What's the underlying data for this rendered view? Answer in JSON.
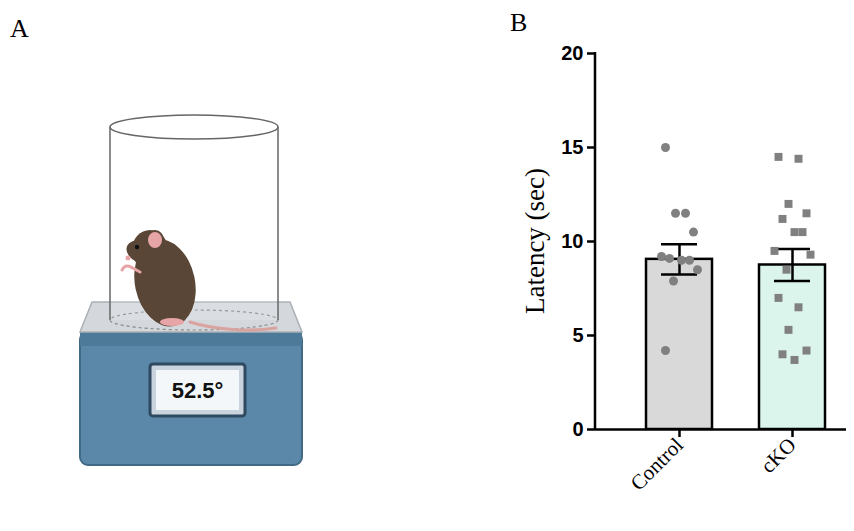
{
  "panel_a": {
    "letter": "A",
    "display": "52.5°"
  },
  "chart_data": {
    "letter": "B",
    "type": "bar",
    "y_label": "Latency (sec)",
    "categories": [
      "Control",
      "cKO"
    ],
    "values": [
      9.05,
      8.75
    ],
    "errors": [
      0.8,
      0.85
    ],
    "colors": [
      "#d9d9d9",
      "#dcf5ec"
    ],
    "points": [
      {
        "marker": "circle",
        "color": "#808080",
        "values": [
          15.0,
          11.5,
          11.5,
          10.5,
          9.1,
          9.0,
          9.0,
          9.2,
          8.5,
          7.9,
          4.2
        ]
      },
      {
        "marker": "square",
        "color": "#808080",
        "values": [
          14.5,
          14.4,
          12.0,
          11.5,
          11.2,
          10.5,
          10.5,
          9.5,
          9.3,
          8.5,
          7.0,
          6.5,
          5.3,
          4.2,
          4.0,
          3.7
        ]
      }
    ],
    "ylim": [
      0,
      20
    ],
    "yticks": [
      0,
      5,
      10,
      15,
      20
    ],
    "grid": false
  }
}
